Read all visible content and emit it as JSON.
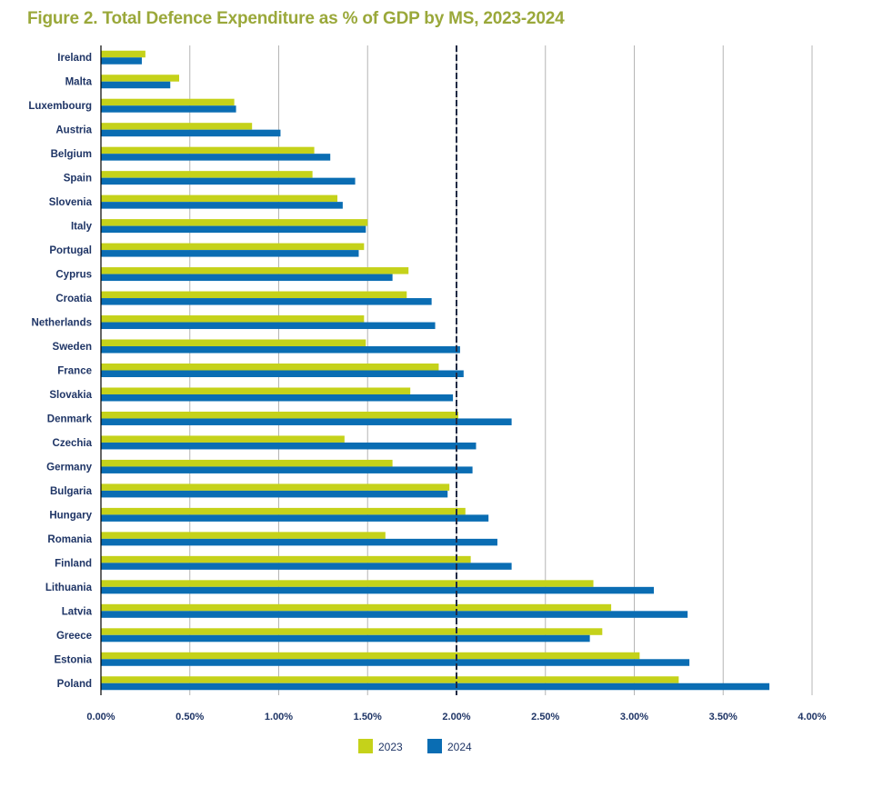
{
  "chart_data": {
    "type": "bar",
    "orientation": "horizontal",
    "title": "Figure 2. Total Defence Expenditure as % of GDP by MS, 2023-2024",
    "xlabel": "",
    "ylabel": "",
    "xlim": [
      0,
      4.0
    ],
    "xticks": [
      "0.00%",
      "0.50%",
      "1.00%",
      "1.50%",
      "2.00%",
      "2.50%",
      "3.00%",
      "3.50%",
      "4.00%"
    ],
    "grid": true,
    "reference_line": 2.0,
    "legend_position": "bottom",
    "categories": [
      "Ireland",
      "Malta",
      "Luxembourg",
      "Austria",
      "Belgium",
      "Spain",
      "Slovenia",
      "Italy",
      "Portugal",
      "Cyprus",
      "Croatia",
      "Netherlands",
      "Sweden",
      "France",
      "Slovakia",
      "Denmark",
      "Czechia",
      "Germany",
      "Bulgaria",
      "Hungary",
      "Romania",
      "Finland",
      "Lithuania",
      "Latvia",
      "Greece",
      "Estonia",
      "Poland"
    ],
    "series": [
      {
        "name": "2023",
        "color": "#c5d21a",
        "values": [
          0.25,
          0.44,
          0.75,
          0.85,
          1.2,
          1.19,
          1.33,
          1.5,
          1.48,
          1.73,
          1.72,
          1.48,
          1.49,
          1.9,
          1.74,
          2.01,
          1.37,
          1.64,
          1.96,
          2.05,
          1.6,
          2.08,
          2.77,
          2.87,
          2.82,
          3.03,
          3.25
        ]
      },
      {
        "name": "2024",
        "color": "#0a6db3",
        "values": [
          0.23,
          0.39,
          0.76,
          1.01,
          1.29,
          1.43,
          1.36,
          1.49,
          1.45,
          1.64,
          1.86,
          1.88,
          2.02,
          2.04,
          1.98,
          2.31,
          2.11,
          2.09,
          1.95,
          2.18,
          2.23,
          2.31,
          3.11,
          3.3,
          2.75,
          3.31,
          3.76
        ]
      }
    ]
  }
}
